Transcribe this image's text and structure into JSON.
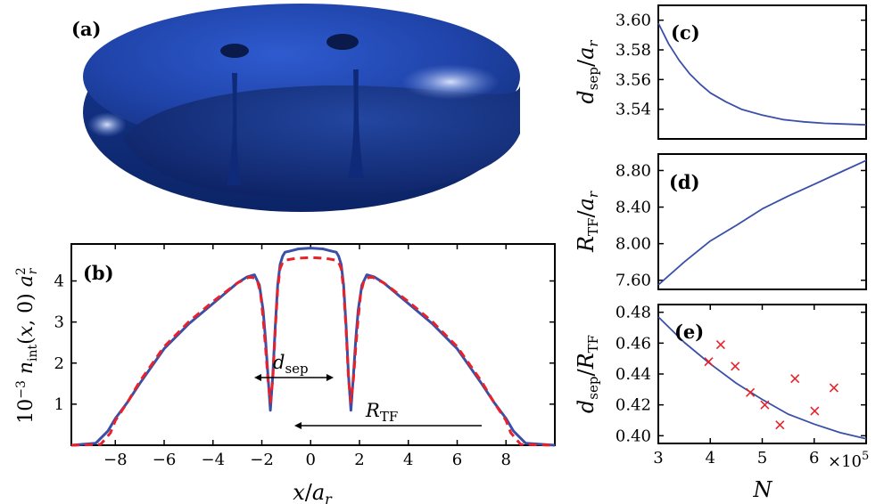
{
  "panels": {
    "a": {
      "label": "(a)"
    },
    "b": {
      "label": "(b)"
    },
    "c": {
      "label": "(c)"
    },
    "d": {
      "label": "(d)"
    },
    "e": {
      "label": "(e)"
    }
  },
  "colors": {
    "blue": "#3a4fa8",
    "red": "#e8222a",
    "surface": "#1f43a8",
    "cavity": "#0f2a70"
  },
  "annotations": {
    "dsep_main": "d",
    "dsep_sub": "sep",
    "rtf_main": "R",
    "rtf_sub": "TF"
  },
  "axes": {
    "b_xlabel": "x/a_r",
    "b_ylabel": "10^-3 n_int(x,0) a_r^2",
    "c_ylabel": "d_sep/a_r",
    "d_ylabel": "R_TF/a_r",
    "e_ylabel": "d_sep/R_TF",
    "e_xlabel": "N",
    "e_xexp": "×10^5"
  },
  "chart_data": [
    {
      "panel": "b",
      "type": "line",
      "xlim": [
        -9.8,
        10
      ],
      "ylim": [
        0,
        4.9
      ],
      "xticks": [
        -8,
        -6,
        -4,
        -2,
        0,
        2,
        4,
        6,
        8
      ],
      "xtick_labels": [
        "−8",
        "−6",
        "−4",
        "−2",
        "0",
        "2",
        "4",
        "6",
        "8"
      ],
      "yticks": [
        1,
        2,
        3,
        4
      ],
      "ytick_labels": [
        "1",
        "2",
        "3",
        "4"
      ],
      "series": [
        {
          "style": "solid",
          "color": "#3a4fa8",
          "x": [
            -9.8,
            -8.8,
            -8.3,
            -8,
            -7.5,
            -7,
            -6,
            -5,
            -4,
            -3,
            -2.6,
            -2.3,
            -2.1,
            -1.95,
            -1.85,
            -1.75,
            -1.65,
            -1.55,
            -1.45,
            -1.35,
            -1.25,
            -1.15,
            -1.05,
            -0.9,
            -0.7,
            -0.5,
            0,
            0.5,
            0.7,
            0.9,
            1.05,
            1.15,
            1.25,
            1.35,
            1.45,
            1.55,
            1.65,
            1.75,
            1.85,
            1.95,
            2.1,
            2.3,
            2.6,
            3,
            4,
            5,
            6,
            7,
            7.5,
            8,
            8.3,
            8.8,
            10
          ],
          "y": [
            0,
            0.05,
            0.35,
            0.65,
            1.05,
            1.5,
            2.35,
            2.95,
            3.45,
            3.95,
            4.1,
            4.15,
            3.9,
            3.3,
            2.6,
            1.7,
            0.85,
            1.7,
            2.9,
            3.9,
            4.4,
            4.6,
            4.7,
            4.72,
            4.75,
            4.78,
            4.8,
            4.78,
            4.75,
            4.72,
            4.7,
            4.6,
            4.4,
            3.9,
            2.9,
            1.7,
            0.85,
            1.7,
            2.6,
            3.3,
            3.9,
            4.15,
            4.1,
            3.95,
            3.45,
            2.95,
            2.35,
            1.5,
            1.05,
            0.65,
            0.35,
            0.05,
            0
          ]
        },
        {
          "style": "dashed",
          "color": "#e8222a",
          "x": [
            -9.8,
            -8.6,
            -8.2,
            -8,
            -7.5,
            -7,
            -6,
            -5,
            -4,
            -3,
            -2.5,
            -2.2,
            -2.05,
            -1.95,
            -1.85,
            -1.75,
            -1.65,
            -1.55,
            -1.45,
            -1.35,
            -1.25,
            -1.15,
            -1.05,
            -0.9,
            -0.6,
            0,
            0.6,
            0.9,
            1.05,
            1.15,
            1.25,
            1.35,
            1.45,
            1.55,
            1.65,
            1.75,
            1.85,
            1.95,
            2.05,
            2.2,
            2.5,
            3,
            4,
            5,
            6,
            7,
            7.5,
            8,
            8.2,
            8.6,
            10
          ],
          "y": [
            0,
            0.02,
            0.3,
            0.6,
            1.05,
            1.55,
            2.4,
            3.0,
            3.5,
            3.95,
            4.1,
            4.05,
            3.7,
            3.1,
            2.4,
            1.6,
            1.05,
            1.6,
            2.8,
            3.8,
            4.3,
            4.45,
            4.5,
            4.52,
            4.55,
            4.57,
            4.55,
            4.52,
            4.5,
            4.45,
            4.3,
            3.8,
            2.8,
            1.6,
            1.05,
            1.6,
            2.4,
            3.1,
            3.7,
            4.05,
            4.1,
            3.95,
            3.5,
            3.0,
            2.4,
            1.55,
            1.05,
            0.6,
            0.3,
            0.02,
            0
          ]
        }
      ],
      "xlabel": "x/a_r"
    },
    {
      "panel": "c",
      "type": "line",
      "xlim": [
        3,
        7.0
      ],
      "ylim": [
        3.52,
        3.61
      ],
      "yticks": [
        3.54,
        3.56,
        3.58,
        3.6
      ],
      "ytick_labels": [
        "3.54",
        "3.56",
        "3.58",
        "3.60"
      ],
      "series": [
        {
          "color": "#3a4fa8",
          "x": [
            3,
            3.2,
            3.4,
            3.6,
            3.8,
            4.0,
            4.3,
            4.6,
            5.0,
            5.4,
            5.8,
            6.2,
            6.6,
            7.0
          ],
          "y": [
            3.598,
            3.584,
            3.573,
            3.564,
            3.557,
            3.551,
            3.545,
            3.54,
            3.536,
            3.533,
            3.5315,
            3.5305,
            3.53,
            3.5295
          ]
        }
      ]
    },
    {
      "panel": "d",
      "type": "line",
      "xlim": [
        3,
        7.0
      ],
      "ylim": [
        7.5,
        8.98
      ],
      "yticks": [
        7.6,
        8.0,
        8.4,
        8.8
      ],
      "ytick_labels": [
        "7.60",
        "8.00",
        "8.40",
        "8.80"
      ],
      "series": [
        {
          "color": "#3a4fa8",
          "x": [
            3,
            3.5,
            4.0,
            4.5,
            5.0,
            5.5,
            6.0,
            6.5,
            7.0
          ],
          "y": [
            7.55,
            7.8,
            8.03,
            8.2,
            8.38,
            8.52,
            8.65,
            8.78,
            8.91
          ]
        }
      ]
    },
    {
      "panel": "e",
      "type": "scatter",
      "xlim": [
        3,
        7.0
      ],
      "ylim": [
        0.395,
        0.485
      ],
      "xticks": [
        3,
        4,
        5,
        6
      ],
      "xtick_labels": [
        "3",
        "4",
        "5",
        "6"
      ],
      "yticks": [
        0.4,
        0.42,
        0.44,
        0.46,
        0.48
      ],
      "ytick_labels": [
        "0.40",
        "0.42",
        "0.44",
        "0.46",
        "0.48"
      ],
      "series": [
        {
          "style": "line",
          "color": "#3a4fa8",
          "x": [
            3,
            3.5,
            4.0,
            4.5,
            5.0,
            5.5,
            6.0,
            6.5,
            7.0
          ],
          "y": [
            0.477,
            0.4605,
            0.4465,
            0.434,
            0.4235,
            0.414,
            0.4075,
            0.402,
            0.398
          ]
        },
        {
          "style": "markers",
          "color": "#e8222a",
          "x": [
            3.97,
            4.2,
            4.48,
            4.77,
            5.05,
            5.34,
            5.63,
            6.01,
            6.38
          ],
          "y": [
            0.448,
            0.459,
            0.445,
            0.428,
            0.42,
            0.407,
            0.437,
            0.416,
            0.431
          ]
        }
      ],
      "xlabel": "N",
      "x_multiplier": "×10^5"
    }
  ]
}
